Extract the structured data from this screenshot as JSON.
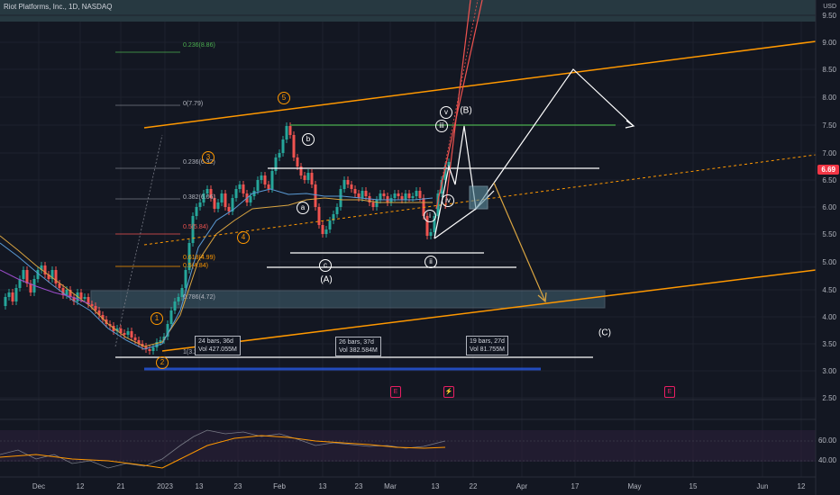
{
  "header": {
    "title": "Riot Platforms, Inc., 1D, NASDAQ",
    "currency": "USD"
  },
  "price_axis": {
    "labels": [
      "9.50",
      "9.00",
      "8.50",
      "8.00",
      "7.50",
      "7.00",
      "6.50",
      "6.00",
      "5.50",
      "5.00",
      "4.50",
      "4.00",
      "3.50",
      "3.00",
      "2.50"
    ],
    "last_price": "6.69"
  },
  "time_axis": {
    "labels": [
      "Dec",
      "12",
      "21",
      "2023",
      "13",
      "23",
      "Feb",
      "13",
      "23",
      "Mar",
      "13",
      "22",
      "Apr",
      "17",
      "May",
      "15",
      "Jun",
      "12"
    ]
  },
  "fib_labels": [
    "0.236(8.86)",
    "0(7.79)",
    "0.236(6.32)",
    "0.382(6.06)",
    "0.5(5.84)",
    "0.618(4.99)",
    "0.5(4.84)",
    "0.786(4.72)",
    "1(3.29)"
  ],
  "measure_boxes": [
    {
      "line1": "24 bars, 36d",
      "line2": "Vol 427.055M"
    },
    {
      "line1": "26 bars, 37d",
      "line2": "Vol 382.584M"
    },
    {
      "line1": "19 bars, 27d",
      "line2": "Vol 81.755M"
    }
  ],
  "wave_labels": {
    "w1": "1",
    "w2": "2",
    "w3": "3",
    "w4": "4",
    "w5": "5",
    "a": "a",
    "b": "b",
    "c": "c",
    "A": "(A)",
    "B": "(B)",
    "C": "(C)",
    "i": "i",
    "ii": "ii",
    "iii": "iii",
    "iv": "iv",
    "v": "v"
  },
  "oscillator": {
    "labels": [
      "60.00",
      "40.00"
    ]
  },
  "colors": {
    "background": "#131722",
    "up": "#26a69a",
    "down": "#ef5350",
    "orange": "#ff9800",
    "white": "#ffffff",
    "green": "#4caf50",
    "fib_box": "#5d8fa0",
    "price_tag": "#f23645"
  },
  "icons": [
    "earnings-icon",
    "dividend-icon",
    "earnings-icon"
  ]
}
